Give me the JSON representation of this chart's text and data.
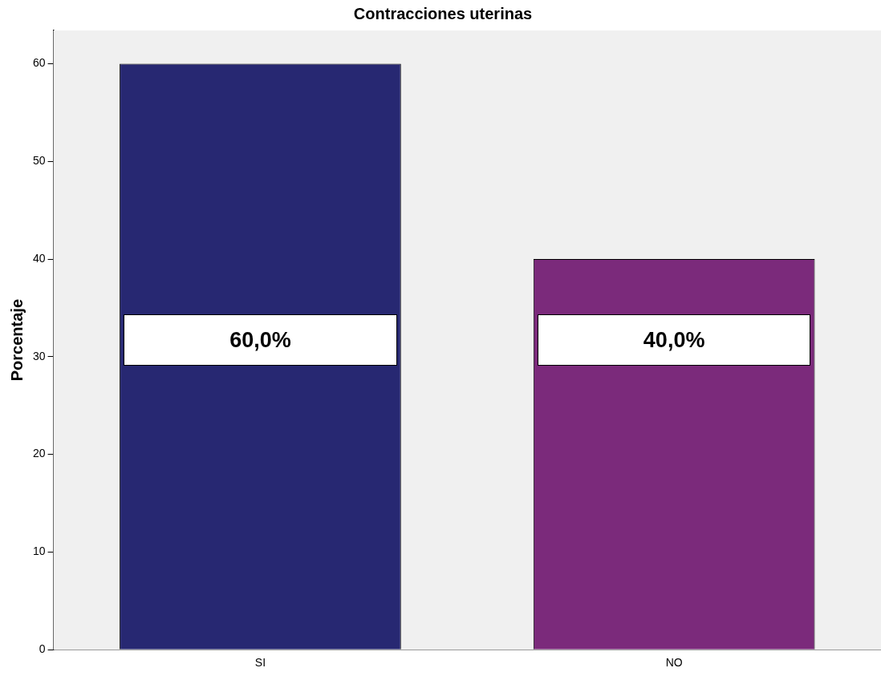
{
  "chart_data": {
    "type": "bar",
    "title": "Contracciones uterinas",
    "ylabel": "Porcentaje",
    "categories": [
      "SI",
      "NO"
    ],
    "values": [
      60,
      40
    ],
    "colors": [
      "#272872",
      "#7b2a7b"
    ],
    "value_labels": [
      "60,0%",
      "40,0%"
    ],
    "ylim": [
      0,
      63.4
    ],
    "yticks": [
      0,
      10,
      20,
      30,
      40,
      50,
      60
    ],
    "grid": false,
    "legend": false
  }
}
